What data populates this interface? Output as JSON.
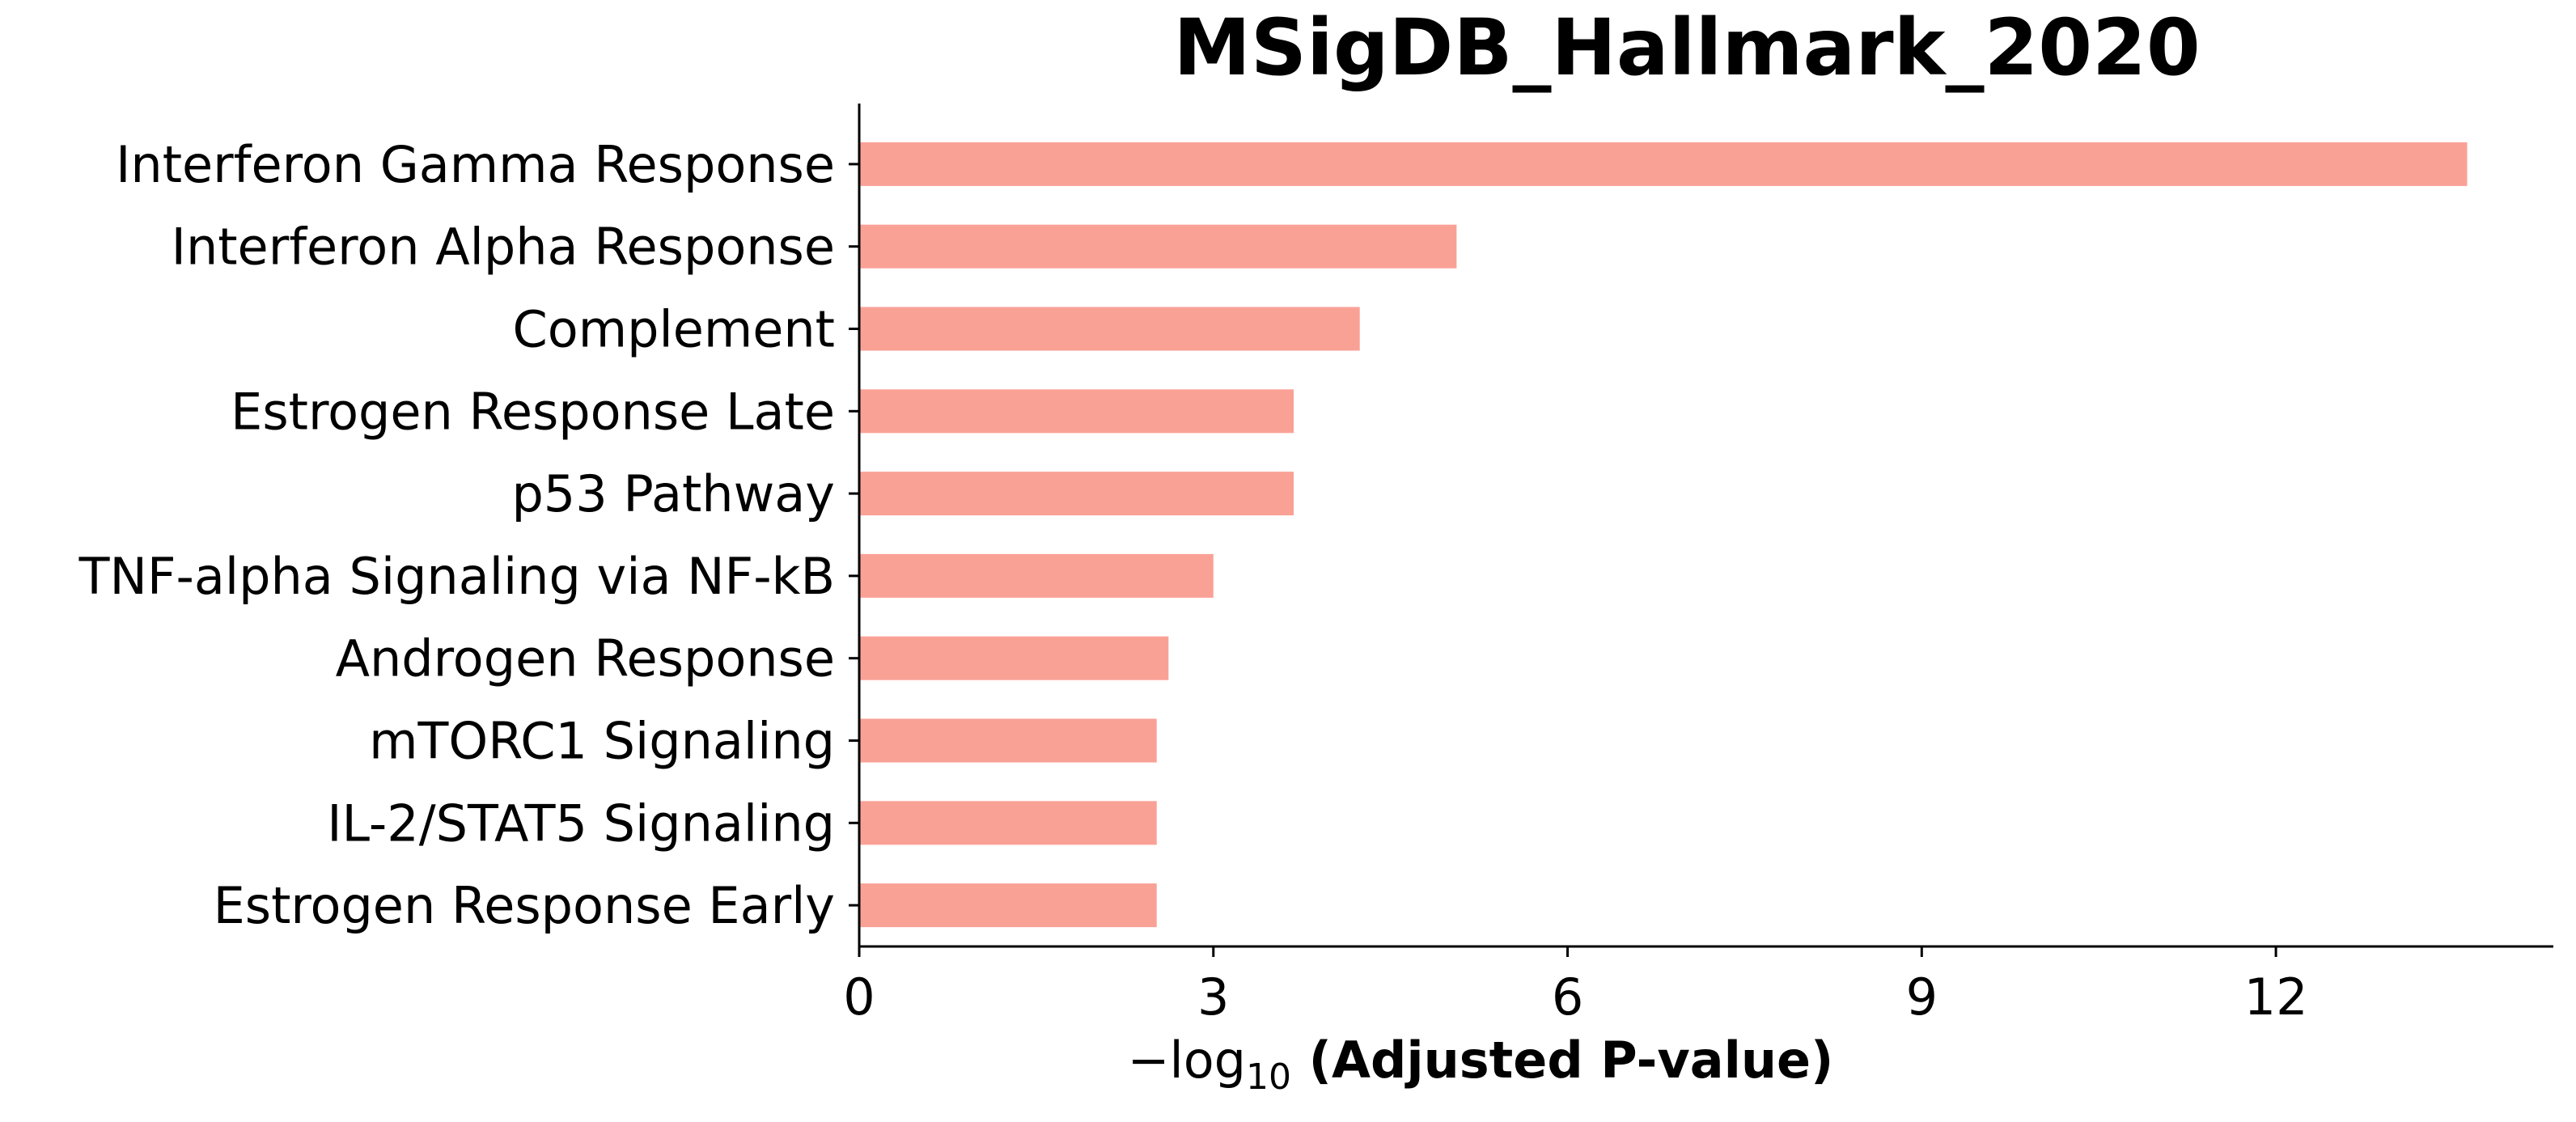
{
  "chart_data": {
    "type": "bar",
    "orientation": "horizontal",
    "title": "MSigDB_Hallmark_2020",
    "xlabel": {
      "prefix": "−log",
      "subscript": "10",
      "main": " (Adjusted P-value)"
    },
    "ylabel": "",
    "categories": [
      "Interferon Gamma Response",
      "Interferon Alpha Response",
      "Complement",
      "Estrogen Response Late",
      "p53 Pathway",
      "TNF-alpha Signaling via NF-kB",
      "Androgen Response",
      "mTORC1 Signaling",
      "IL-2/STAT5 Signaling",
      "Estrogen Response Early"
    ],
    "values": [
      13.62,
      5.06,
      4.24,
      3.68,
      3.68,
      3.0,
      2.62,
      2.52,
      2.52,
      2.52
    ],
    "xlim": [
      0,
      14.35
    ],
    "xticks": [
      0,
      3,
      6,
      9,
      12
    ],
    "grid": false,
    "legend": "none",
    "bar_color": "#FAA196",
    "axis_color": "#000000"
  }
}
